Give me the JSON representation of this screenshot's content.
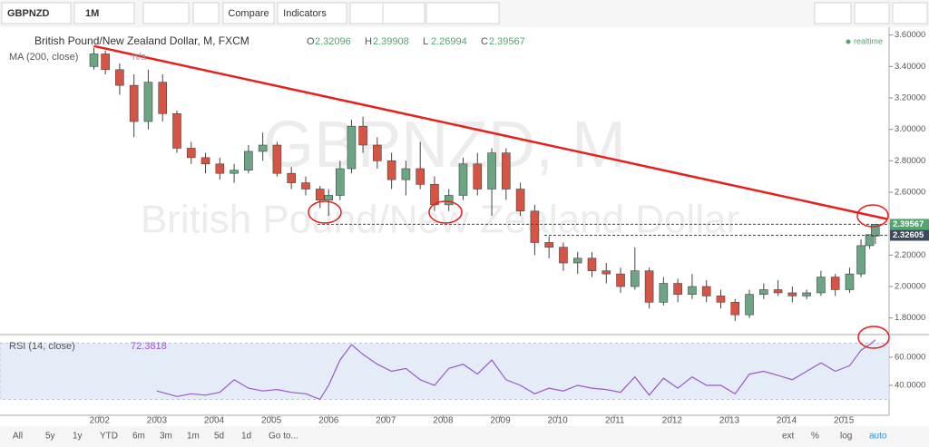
{
  "toolbar": {
    "symbol": "GBPNZD",
    "interval": "1M",
    "buttons": [
      "Compare",
      "Indicators"
    ]
  },
  "range_bar": {
    "left": [
      "All",
      "5y",
      "1y",
      "YTD",
      "6m",
      "3m",
      "1m",
      "5d",
      "1d",
      "Go to..."
    ],
    "right": [
      "ext",
      "%",
      "log",
      "auto"
    ]
  },
  "chart_data": {
    "type": "candlestick",
    "title": "British Pound/New Zealand Dollar, M, FXCM",
    "watermark": [
      "GBPNZD, M",
      "British Pound/New Zealand Dollar"
    ],
    "ohlc_legend": {
      "letters": [
        "O",
        "H",
        "L",
        "C"
      ],
      "values": [
        2.32096,
        2.39908,
        2.26994,
        2.39567
      ]
    },
    "study": "MA (200, close)",
    "study_value": "n/a",
    "status": "realtime",
    "x": [
      2001.9,
      2002.1,
      2002.35,
      2002.6,
      2002.85,
      2003.1,
      2003.35,
      2003.6,
      2003.85,
      2004.1,
      2004.35,
      2004.6,
      2004.85,
      2005.1,
      2005.35,
      2005.6,
      2005.85,
      2006.0,
      2006.2,
      2006.4,
      2006.6,
      2006.85,
      2007.1,
      2007.35,
      2007.6,
      2007.85,
      2008.1,
      2008.35,
      2008.6,
      2008.85,
      2009.1,
      2009.35,
      2009.6,
      2009.85,
      2010.1,
      2010.35,
      2010.6,
      2010.85,
      2011.1,
      2011.35,
      2011.6,
      2011.85,
      2012.1,
      2012.35,
      2012.6,
      2012.85,
      2013.1,
      2013.35,
      2013.6,
      2013.85,
      2014.1,
      2014.35,
      2014.6,
      2014.85,
      2015.1,
      2015.3,
      2015.45,
      2015.55
    ],
    "open": [
      3.4,
      3.48,
      3.38,
      3.28,
      3.05,
      3.3,
      3.1,
      2.88,
      2.82,
      2.78,
      2.72,
      2.74,
      2.86,
      2.9,
      2.72,
      2.66,
      2.62,
      2.55,
      2.58,
      2.75,
      3.02,
      2.9,
      2.8,
      2.68,
      2.75,
      2.65,
      2.52,
      2.58,
      2.78,
      2.62,
      2.85,
      2.62,
      2.48,
      2.28,
      2.25,
      2.15,
      2.18,
      2.1,
      2.08,
      2.0,
      2.1,
      1.9,
      2.02,
      1.95,
      2.0,
      1.94,
      1.9,
      1.82,
      1.95,
      1.98,
      1.96,
      1.94,
      1.96,
      2.06,
      1.98,
      2.08,
      2.26,
      2.32096
    ],
    "high": [
      3.52,
      3.5,
      3.42,
      3.35,
      3.38,
      3.35,
      3.12,
      2.92,
      2.85,
      2.82,
      2.78,
      2.9,
      2.98,
      2.92,
      2.76,
      2.7,
      2.64,
      2.62,
      2.8,
      3.06,
      3.08,
      2.95,
      2.85,
      2.8,
      2.92,
      2.7,
      2.62,
      2.82,
      2.85,
      2.88,
      2.88,
      2.66,
      2.52,
      2.32,
      2.28,
      2.22,
      2.22,
      2.15,
      2.12,
      2.25,
      2.12,
      2.06,
      2.05,
      2.08,
      2.04,
      1.98,
      1.92,
      1.98,
      2.02,
      2.04,
      2.0,
      1.98,
      2.1,
      2.08,
      2.12,
      2.3,
      2.33,
      2.39908
    ],
    "low": [
      3.38,
      3.35,
      3.22,
      2.95,
      3.0,
      3.05,
      2.85,
      2.78,
      2.72,
      2.68,
      2.66,
      2.72,
      2.8,
      2.7,
      2.62,
      2.58,
      2.5,
      2.45,
      2.55,
      2.72,
      2.85,
      2.75,
      2.62,
      2.58,
      2.62,
      2.48,
      2.48,
      2.55,
      2.58,
      2.45,
      2.55,
      2.45,
      2.2,
      2.18,
      2.1,
      2.08,
      2.06,
      2.02,
      1.96,
      1.98,
      1.86,
      1.88,
      1.9,
      1.92,
      1.9,
      1.86,
      1.78,
      1.8,
      1.92,
      1.94,
      1.9,
      1.92,
      1.94,
      1.94,
      1.96,
      2.06,
      2.24,
      2.26994
    ],
    "close": [
      3.48,
      3.38,
      3.28,
      3.05,
      3.3,
      3.1,
      2.88,
      2.82,
      2.78,
      2.72,
      2.74,
      2.86,
      2.9,
      2.72,
      2.66,
      2.62,
      2.55,
      2.58,
      2.75,
      3.02,
      2.9,
      2.8,
      2.68,
      2.75,
      2.65,
      2.52,
      2.58,
      2.78,
      2.62,
      2.85,
      2.62,
      2.48,
      2.28,
      2.25,
      2.15,
      2.18,
      2.1,
      2.08,
      2.0,
      2.1,
      1.9,
      2.02,
      1.95,
      2.0,
      1.94,
      1.9,
      1.82,
      1.95,
      1.98,
      1.96,
      1.94,
      1.96,
      2.06,
      1.98,
      2.08,
      2.26,
      2.33,
      2.39567
    ],
    "up_color": "#6ba583",
    "down_color": "#d75442",
    "trendline": {
      "x": [
        2001.9,
        2015.75
      ],
      "y": [
        3.53,
        2.43
      ],
      "color": "#e8201c"
    },
    "price_labels": [
      {
        "value": 2.39567,
        "color": "#53a46e"
      },
      {
        "value": 2.32605,
        "color": "#3d4a5c"
      }
    ],
    "xlim": [
      2000.26,
      2015.79
    ],
    "xticks": [
      2002,
      2003,
      2004,
      2005,
      2006,
      2007,
      2008,
      2009,
      2010,
      2011,
      2012,
      2013,
      2014,
      2015
    ],
    "ylim": [
      1.7,
      3.65
    ],
    "yticks": [
      {
        "value": 1.8,
        "label": "1.80000"
      },
      {
        "value": 2.0,
        "label": "2.00000"
      },
      {
        "value": 2.2,
        "label": "2.20000"
      },
      {
        "value": 2.4,
        "label": "2.40000"
      },
      {
        "value": 2.6,
        "label": "2.60000"
      },
      {
        "value": 2.8,
        "label": "2.80000"
      },
      {
        "value": 3.0,
        "label": "3.00000"
      },
      {
        "value": 3.2,
        "label": "3.20000"
      },
      {
        "value": 3.4,
        "label": "3.40000"
      },
      {
        "value": 3.6,
        "label": "3.60000"
      }
    ],
    "rsi": {
      "name": "RSI (14, close)",
      "last": 72.3818,
      "color": "#9c58c9",
      "x": [
        2003.0,
        2003.35,
        2003.6,
        2003.85,
        2004.1,
        2004.35,
        2004.6,
        2004.85,
        2005.1,
        2005.35,
        2005.6,
        2005.85,
        2006.0,
        2006.2,
        2006.4,
        2006.6,
        2006.85,
        2007.1,
        2007.35,
        2007.6,
        2007.85,
        2008.1,
        2008.35,
        2008.6,
        2008.85,
        2009.1,
        2009.35,
        2009.6,
        2009.85,
        2010.1,
        2010.35,
        2010.6,
        2010.85,
        2011.1,
        2011.35,
        2011.6,
        2011.85,
        2012.1,
        2012.35,
        2012.6,
        2012.85,
        2013.1,
        2013.35,
        2013.6,
        2013.85,
        2014.1,
        2014.35,
        2014.6,
        2014.85,
        2015.1,
        2015.3,
        2015.45,
        2015.55
      ],
      "values": [
        36,
        32,
        34,
        33,
        35,
        44,
        38,
        36,
        37,
        35,
        34,
        30,
        40,
        58,
        69,
        62,
        55,
        50,
        52,
        44,
        40,
        52,
        55,
        48,
        58,
        44,
        40,
        34,
        38,
        36,
        40,
        38,
        37,
        35,
        46,
        33,
        45,
        38,
        46,
        40,
        40,
        34,
        48,
        50,
        47,
        44,
        50,
        56,
        50,
        54,
        65,
        69,
        72.3818
      ],
      "band": [
        30,
        70
      ],
      "ylim": [
        20.6,
        74.2
      ],
      "yticks": [
        {
          "value": 40,
          "label": "40.0000"
        },
        {
          "value": 60,
          "label": "60.0000"
        }
      ]
    }
  }
}
